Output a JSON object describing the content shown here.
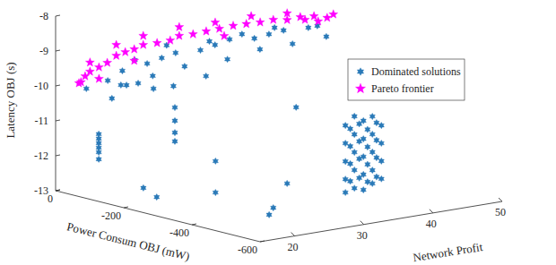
{
  "chart_data": {
    "type": "scatter3d",
    "x_label": "Network Profit",
    "y_label": "Power Consum OBJ (mW)",
    "z_label": "Latency OBJ (s)",
    "xlim": [
      15,
      50
    ],
    "ylim": [
      -600,
      0
    ],
    "zlim": [
      -13,
      -8
    ],
    "xticks": [
      20,
      30,
      40,
      50
    ],
    "yticks": [
      -600,
      -400,
      -200,
      0
    ],
    "zticks": [
      -13,
      -12,
      -11,
      -10,
      -9,
      -8
    ],
    "grid": false,
    "legend": "upper right",
    "series": [
      {
        "name": "Dominated solutions",
        "color": "#2a7ab8",
        "marker": "hexagram",
        "x": [
          18.6,
          21.2,
          23.8,
          26.4,
          28.9,
          31.5,
          34.1,
          36.7,
          39.3,
          41.9,
          44.5,
          47.1,
          22.5,
          27.6,
          32.8,
          38.0,
          43.2,
          48.4,
          25.1,
          30.2,
          35.4,
          40.6,
          45.8,
          49.7,
          20.5,
          16.0,
          22.5,
          19.2,
          21.8,
          27.6,
          32.8,
          25.7,
          17.3,
          17.3,
          17.3,
          17.3,
          17.3,
          17.3,
          28.3,
          28.3,
          28.3,
          28.3,
          20.3,
          17.3,
          25.8,
          25.8,
          23.7,
          24.3,
          26.3,
          27.6,
          29.8,
          29.8,
          29.8,
          29.8,
          29.8,
          31.1,
          31.1,
          31.1,
          31.1,
          31.1,
          32.4,
          32.4,
          32.4,
          32.4,
          32.4,
          33.7,
          33.7,
          33.7,
          33.7,
          33.7,
          35.0,
          35.0,
          35.0,
          35.0,
          30.5,
          30.5,
          30.5,
          30.5,
          31.8,
          31.8,
          31.8,
          31.8,
          33.0,
          33.0,
          33.0,
          33.0,
          34.3,
          34.3,
          34.3,
          34.3
        ],
        "y": [
          -80,
          -70,
          -90,
          -80,
          -70,
          -90,
          -80,
          -70,
          -90,
          -80,
          -70,
          -90,
          -80,
          -70,
          -90,
          -80,
          -70,
          -90,
          -80,
          -70,
          -90,
          -80,
          -70,
          -90,
          -80,
          -70,
          -90,
          -80,
          -70,
          -90,
          -80,
          -70,
          -80,
          -80,
          -80,
          -80,
          -80,
          -80,
          -80,
          -80,
          -80,
          -80,
          -150,
          -250,
          -250,
          -250,
          -450,
          -450,
          -450,
          -450,
          -550,
          -550,
          -550,
          -550,
          -550,
          -550,
          -550,
          -550,
          -550,
          -550,
          -550,
          -550,
          -550,
          -550,
          -550,
          -550,
          -550,
          -550,
          -550,
          -550,
          -550,
          -550,
          -550,
          -550,
          -550,
          -550,
          -550,
          -550,
          -550,
          -550,
          -550,
          -550,
          -550,
          -550,
          -550,
          -550,
          -550,
          -550,
          -550,
          -550
        ],
        "z": [
          -9.77,
          -9.6,
          -9.43,
          -9.38,
          -9.34,
          -9.3,
          -9.26,
          -9.21,
          -9.22,
          -9.21,
          -9.21,
          -9.17,
          -9.31,
          -9.08,
          -9.09,
          -9.08,
          -9.09,
          -9.16,
          -9.85,
          -9.77,
          -9.69,
          -9.6,
          -9.64,
          -9.51,
          -9.96,
          -9.94,
          -9.95,
          -10.3,
          -10.03,
          -10.2,
          -10.11,
          -10.26,
          -11.26,
          -11.39,
          -11.52,
          -11.65,
          -11.78,
          -11.98,
          -10.86,
          -11.24,
          -11.58,
          -11.83,
          -12.73,
          -12.65,
          -12.8,
          -11.9,
          -12.88,
          -12.7,
          -12.07,
          -9.93,
          -10.28,
          -10.79,
          -11.31,
          -11.82,
          -12.2,
          -10.06,
          -10.58,
          -11.09,
          -11.6,
          -12.12,
          -10.23,
          -10.75,
          -11.26,
          -11.77,
          -12.21,
          -10.15,
          -10.66,
          -11.17,
          -11.69,
          -12.07,
          -10.45,
          -10.96,
          -11.47,
          -11.98,
          -10.4,
          -10.9,
          -11.4,
          -11.9,
          -10.3,
          -10.8,
          -11.3,
          -11.85,
          -10.5,
          -11.0,
          -11.5,
          -12.0,
          -10.35,
          -10.85,
          -11.35,
          -11.9
        ]
      },
      {
        "name": "Pareto frontier",
        "color": "#ff00ff",
        "marker": "pentagram",
        "x": [
          16.7,
          17.3,
          18.0,
          19.3,
          20.5,
          21.8,
          23.1,
          24.4,
          25.7,
          27.7,
          29.6,
          30.9,
          32.9,
          34.8,
          36.7,
          38.7,
          40.6,
          42.6,
          44.5,
          46.5,
          48.4,
          18.0,
          21.8,
          25.7,
          30.9,
          36.1,
          41.3,
          46.5,
          19.3,
          16.4,
          24.4,
          37.4,
          42.5,
          44.4,
          45.3,
          41.2,
          43.1
        ],
        "y": [
          -40,
          -40,
          -40,
          -40,
          -40,
          -40,
          -40,
          -40,
          -40,
          -40,
          -40,
          -40,
          -40,
          -40,
          -40,
          -40,
          -40,
          -40,
          -40,
          -40,
          -40,
          -40,
          -40,
          -40,
          -40,
          -40,
          -40,
          -40,
          -40,
          -40,
          -40,
          -40,
          -200,
          -200,
          -200,
          -200,
          -200
        ],
        "z": [
          -9.85,
          -9.7,
          -9.59,
          -9.51,
          -9.42,
          -9.26,
          -9.2,
          -9.16,
          -9.08,
          -9.09,
          -9.08,
          -8.99,
          -9.01,
          -8.99,
          -8.98,
          -8.96,
          -8.97,
          -8.99,
          -8.98,
          -9.05,
          -9.03,
          -9.33,
          -8.95,
          -8.82,
          -8.74,
          -8.78,
          -8.77,
          -8.86,
          -9.84,
          -9.87,
          -9.49,
          -9.21,
          -8.42,
          -8.53,
          -8.46,
          -8.48,
          -8.59
        ]
      }
    ]
  }
}
